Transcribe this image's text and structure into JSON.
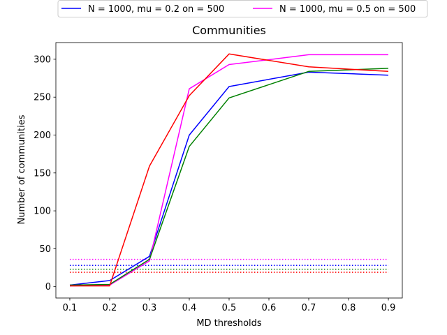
{
  "chart_data": {
    "type": "line",
    "title": "Communities",
    "xlabel": "MD thresholds",
    "ylabel": "Number of communities",
    "x": [
      0.1,
      0.2,
      0.3,
      0.4,
      0.5,
      0.7,
      0.9
    ],
    "xticks": [
      "0.1",
      "0.2",
      "0.3",
      "0.4",
      "0.5",
      "0.6",
      "0.7",
      "0.8",
      "0.9"
    ],
    "yticks": [
      "0",
      "50",
      "100",
      "150",
      "200",
      "250",
      "300"
    ],
    "xlim": [
      0.065,
      0.935
    ],
    "ylim": [
      -15,
      322
    ],
    "grid": false,
    "legend_position": "top, above plot",
    "series": [
      {
        "name": "N = 1000, mu = 0.2 on = 500",
        "color": "#0000ff",
        "values": [
          2,
          8,
          40,
          200,
          264,
          283,
          279
        ]
      },
      {
        "name": "N = 1000, mu = 0.5 on = 500",
        "color": "#ff00ff",
        "values": [
          1,
          2,
          34,
          261,
          293,
          306,
          306
        ]
      },
      {
        "color": "#008000",
        "values": [
          2,
          3,
          36,
          185,
          249,
          284,
          288
        ]
      },
      {
        "color": "#ff0000",
        "values": [
          1,
          1,
          159,
          252,
          307,
          290,
          284
        ]
      }
    ],
    "reference_lines": [
      {
        "color": "#ff00ff",
        "style": "dotted",
        "y": 36
      },
      {
        "color": "#0000ff",
        "style": "dotted",
        "y": 28
      },
      {
        "color": "#008000",
        "style": "dotted",
        "y": 23
      },
      {
        "color": "#ff0000",
        "style": "dotted",
        "y": 19
      }
    ]
  }
}
